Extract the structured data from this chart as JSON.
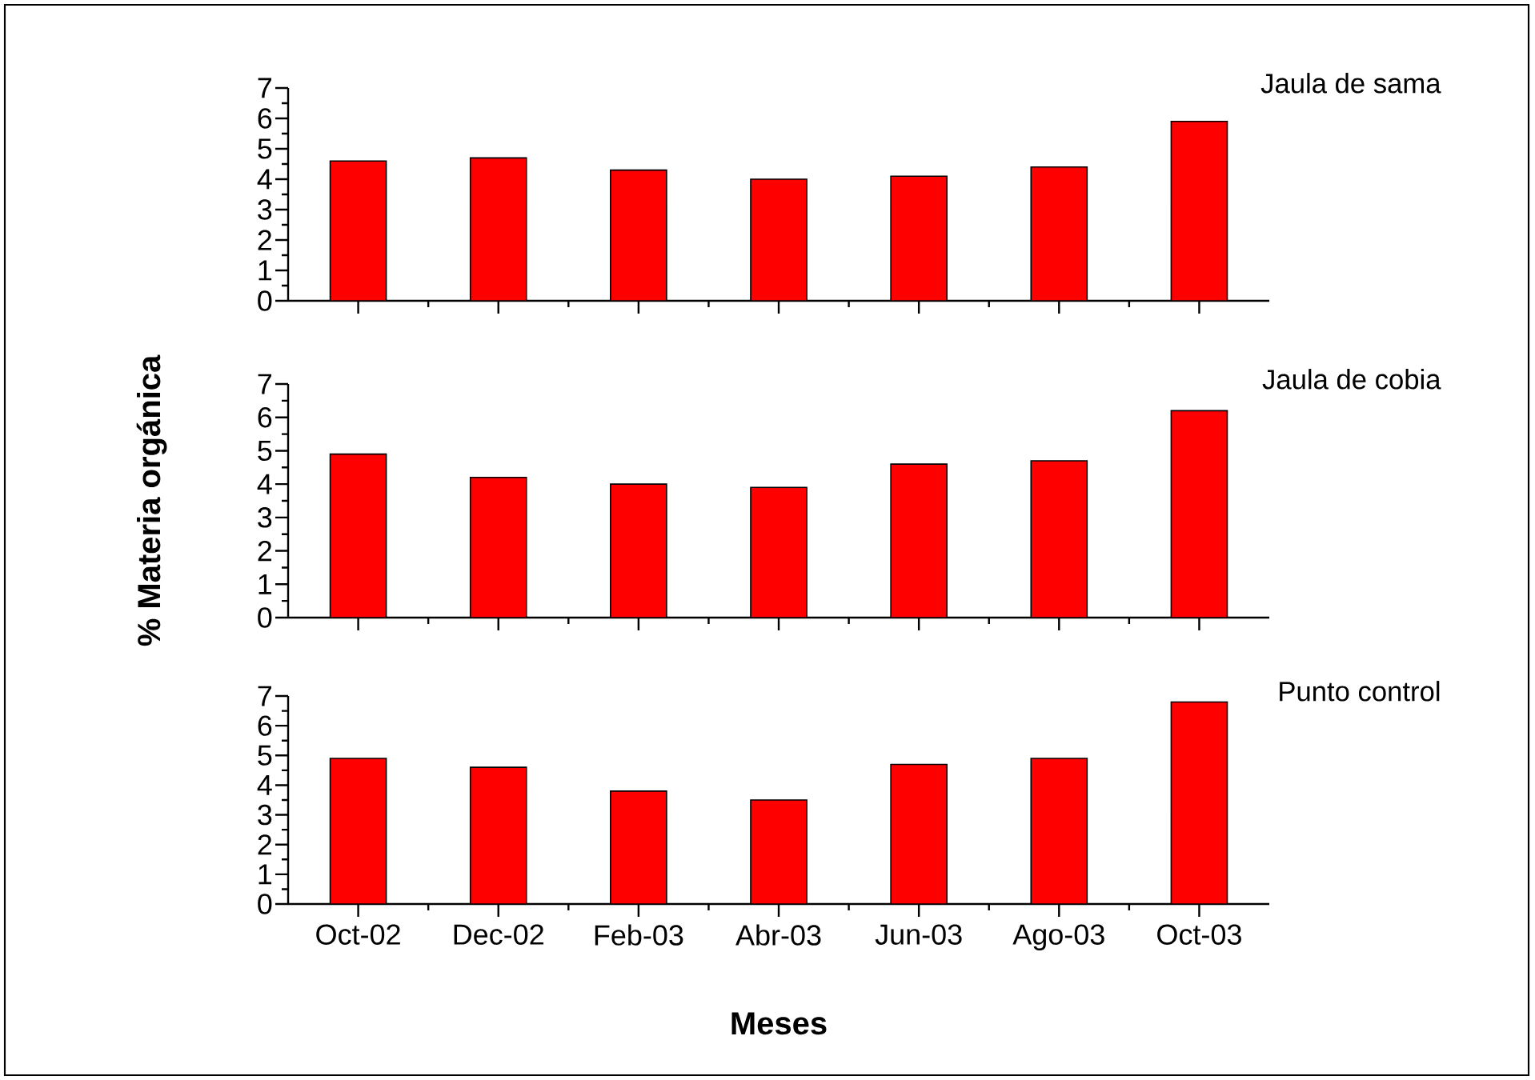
{
  "chart_data": [
    {
      "type": "bar",
      "title": "Jaula de sama",
      "categories": [
        null,
        null,
        null,
        null,
        null,
        null,
        null
      ],
      "values": [
        4.6,
        4.7,
        4.3,
        4.0,
        4.1,
        4.4,
        5.9
      ],
      "color": "#ff0000",
      "ylim": [
        0,
        7
      ],
      "yticks": [
        0,
        1,
        2,
        3,
        4,
        5,
        6,
        7
      ],
      "tick_labels": "y"
    },
    {
      "type": "bar",
      "title": "Jaula de cobia",
      "ylabel": "% Materia orgánica",
      "categories": [
        null,
        null,
        null,
        null,
        null,
        null,
        null
      ],
      "values": [
        4.9,
        4.2,
        4.0,
        3.9,
        4.6,
        4.7,
        6.2
      ],
      "color": "#ff0000",
      "ylim": [
        0,
        7
      ],
      "yticks": [
        0,
        1,
        2,
        3,
        4,
        5,
        6,
        7
      ],
      "tick_labels": "y"
    },
    {
      "type": "bar",
      "title": "Punto control",
      "xlabel": "Meses",
      "categories": [
        "Oct-02",
        "Dec-02",
        "Feb-03",
        "Abr-03",
        "Jun-03",
        "Ago-03",
        "Oct-03"
      ],
      "values": [
        4.9,
        4.6,
        3.8,
        3.5,
        4.7,
        4.9,
        6.8
      ],
      "color": "#ff0000",
      "ylim": [
        0,
        7
      ],
      "yticks": [
        0,
        1,
        2,
        3,
        4,
        5,
        6,
        7
      ]
    }
  ]
}
